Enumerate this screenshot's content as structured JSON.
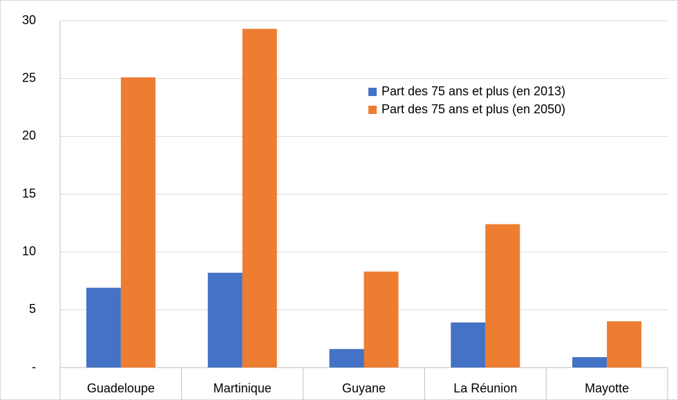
{
  "chart_data": {
    "type": "bar",
    "categories": [
      "Guadeloupe",
      "Martinique",
      "Guyane",
      "La Réunion",
      "Mayotte"
    ],
    "series": [
      {
        "name": "Part des 75 ans et plus (en 2013)",
        "color": "#4472c4",
        "values": [
          6.9,
          8.2,
          1.6,
          3.9,
          0.9
        ]
      },
      {
        "name": "Part des 75 ans et plus (en 2050)",
        "color": "#ed7d31",
        "values": [
          25.1,
          29.3,
          8.3,
          12.4,
          4.0
        ]
      }
    ],
    "ylim": [
      0,
      30
    ],
    "yticks": [
      {
        "value": 0,
        "label": "-"
      },
      5,
      10,
      15,
      20,
      25,
      30
    ],
    "grid": true,
    "legend": "upper right"
  }
}
